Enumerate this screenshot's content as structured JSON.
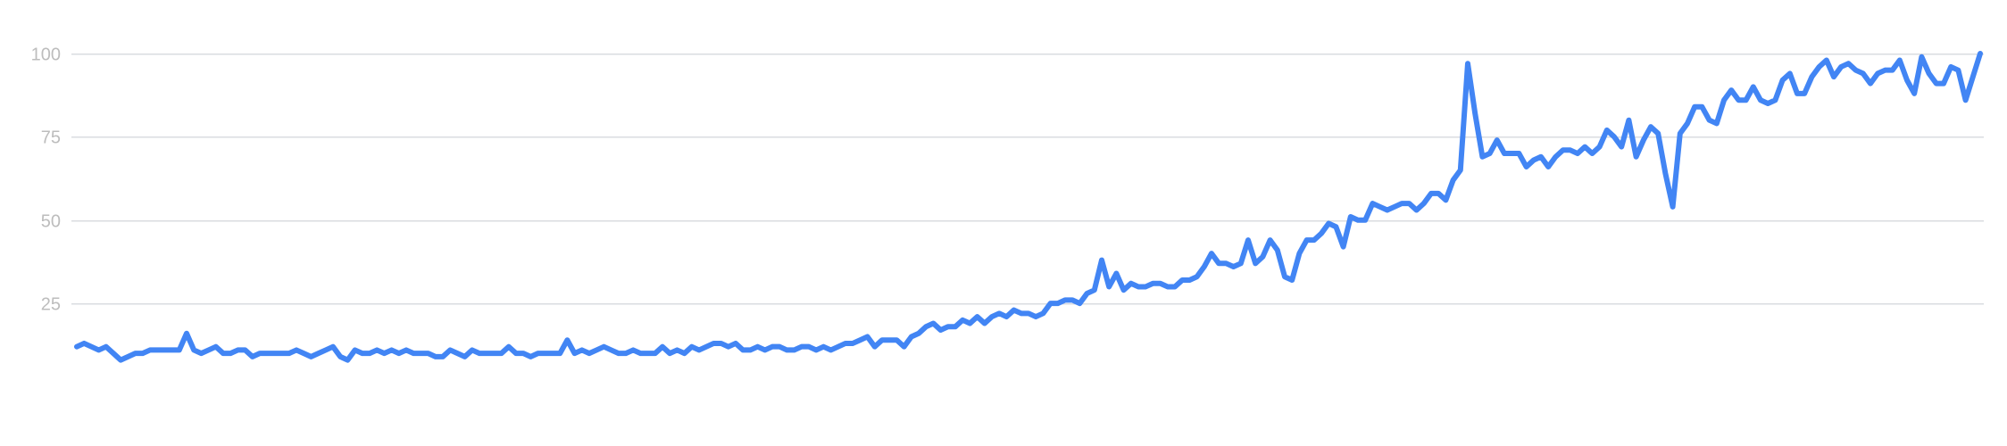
{
  "chart_data": {
    "type": "line",
    "title": "",
    "xlabel": "",
    "ylabel": "",
    "ylim": [
      0,
      100
    ],
    "yticks": [
      {
        "value": 25,
        "label": "25"
      },
      {
        "value": 50,
        "label": "50"
      },
      {
        "value": 75,
        "label": "75"
      },
      {
        "value": 100,
        "label": "100"
      }
    ],
    "grid": true,
    "legend": "none",
    "color": "#4285f4",
    "gridline_color": "#dadce0",
    "tick_label_color": "#bdbdbd",
    "series": [
      {
        "values": [
          12,
          13,
          12,
          11,
          12,
          10,
          8,
          9,
          10,
          10,
          11,
          11,
          11,
          11,
          11,
          16,
          11,
          10,
          11,
          12,
          10,
          10,
          11,
          11,
          9,
          10,
          10,
          10,
          10,
          10,
          11,
          10,
          9,
          10,
          11,
          12,
          9,
          8,
          11,
          10,
          10,
          11,
          10,
          11,
          10,
          11,
          10,
          10,
          10,
          9,
          9,
          11,
          10,
          9,
          11,
          10,
          10,
          10,
          10,
          12,
          10,
          10,
          9,
          10,
          10,
          10,
          10,
          14,
          10,
          11,
          10,
          11,
          12,
          11,
          10,
          10,
          11,
          10,
          10,
          10,
          12,
          10,
          11,
          10,
          12,
          11,
          12,
          13,
          13,
          12,
          13,
          11,
          11,
          12,
          11,
          12,
          12,
          11,
          11,
          12,
          12,
          11,
          12,
          11,
          12,
          13,
          13,
          14,
          15,
          12,
          14,
          14,
          14,
          12,
          15,
          16,
          18,
          19,
          17,
          18,
          18,
          20,
          19,
          21,
          19,
          21,
          22,
          21,
          23,
          22,
          22,
          21,
          22,
          25,
          25,
          26,
          26,
          25,
          28,
          29,
          38,
          30,
          34,
          29,
          31,
          30,
          30,
          31,
          31,
          30,
          30,
          32,
          32,
          33,
          36,
          40,
          37,
          37,
          36,
          37,
          44,
          37,
          39,
          44,
          41,
          33,
          32,
          40,
          44,
          44,
          46,
          49,
          48,
          42,
          51,
          50,
          50,
          55,
          54,
          53,
          54,
          55,
          55,
          53,
          55,
          58,
          58,
          56,
          62,
          65,
          97,
          82,
          69,
          70,
          74,
          70,
          70,
          70,
          66,
          68,
          69,
          66,
          69,
          71,
          71,
          70,
          72,
          70,
          72,
          77,
          75,
          72,
          80,
          69,
          74,
          78,
          76,
          64,
          54,
          76,
          79,
          84,
          84,
          80,
          79,
          86,
          89,
          86,
          86,
          90,
          86,
          85,
          86,
          92,
          94,
          88,
          88,
          93,
          96,
          98,
          93,
          96,
          97,
          95,
          94,
          91,
          94,
          95,
          95,
          98,
          92,
          88,
          99,
          94,
          91,
          91,
          96,
          95,
          86,
          93,
          100
        ]
      }
    ]
  }
}
